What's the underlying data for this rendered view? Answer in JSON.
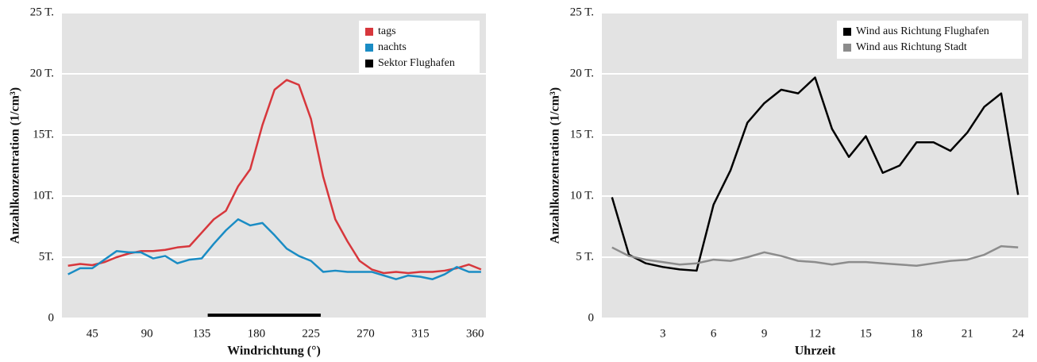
{
  "chart_data": [
    {
      "type": "line",
      "x_label": "Windrichtung (°)",
      "y_label": "Anzahlkonzentration (1/cm³)",
      "x": [
        25,
        35,
        45,
        55,
        65,
        75,
        85,
        95,
        105,
        115,
        125,
        135,
        145,
        155,
        165,
        175,
        185,
        195,
        205,
        215,
        225,
        235,
        245,
        255,
        265,
        275,
        285,
        295,
        305,
        315,
        325,
        335,
        345,
        355,
        365
      ],
      "series": [
        {
          "name": "tags",
          "color": "#d7373c",
          "values": [
            4.3,
            4.45,
            4.35,
            4.6,
            5.0,
            5.3,
            5.5,
            5.5,
            5.6,
            5.8,
            5.9,
            7.0,
            8.1,
            8.8,
            10.8,
            12.2,
            15.8,
            18.7,
            19.5,
            19.1,
            16.3,
            11.6,
            8.1,
            6.3,
            4.7,
            4.0,
            3.7,
            3.8,
            3.7,
            3.8,
            3.8,
            3.9,
            4.1,
            4.4,
            4.0
          ]
        },
        {
          "name": "nachts",
          "color": "#1a8cc4",
          "values": [
            3.6,
            4.1,
            4.1,
            4.8,
            5.5,
            5.4,
            5.4,
            4.9,
            5.1,
            4.5,
            4.8,
            4.9,
            6.1,
            7.2,
            8.1,
            7.6,
            7.8,
            6.8,
            5.7,
            5.1,
            4.7,
            3.8,
            3.9,
            3.8,
            3.8,
            3.8,
            3.5,
            3.2,
            3.5,
            3.4,
            3.2,
            3.6,
            4.2,
            3.8,
            3.8
          ]
        }
      ],
      "sector": {
        "name": "Sektor Flughafen",
        "color": "#000000",
        "range": [
          140,
          233
        ]
      },
      "xlim": [
        20,
        369
      ],
      "xticks": [
        45,
        90,
        135,
        180,
        225,
        270,
        315,
        360
      ],
      "ylim": [
        0,
        25
      ],
      "yticks": [
        {
          "value": 0,
          "label": "0"
        },
        {
          "value": 5,
          "label": "5T."
        },
        {
          "value": 10,
          "label": "10T."
        },
        {
          "value": 15,
          "label": "15T."
        },
        {
          "value": 20,
          "label": "20 T."
        },
        {
          "value": 25,
          "label": "25 T."
        }
      ],
      "grid": true,
      "legend": "top-right"
    },
    {
      "type": "line",
      "x_label": "Uhrzeit",
      "y_label": "Anzahlkonzentration (1/cm³)",
      "x": [
        0,
        1,
        2,
        3,
        4,
        5,
        6,
        7,
        8,
        9,
        10,
        11,
        12,
        13,
        14,
        15,
        16,
        17,
        18,
        19,
        20,
        21,
        22,
        23,
        24
      ],
      "series": [
        {
          "name": "Wind aus Richtung Flughafen",
          "color": "#000000",
          "values": [
            9.9,
            5.2,
            4.5,
            4.2,
            4.0,
            3.9,
            9.3,
            12.1,
            16.0,
            17.6,
            18.7,
            18.4,
            19.7,
            15.5,
            13.2,
            14.9,
            11.9,
            12.5,
            14.4,
            14.4,
            13.7,
            15.2,
            17.3,
            18.4,
            10.1
          ]
        },
        {
          "name": "Wind aus Richtung Stadt",
          "color": "#8c8c8c",
          "values": [
            5.8,
            5.1,
            4.8,
            4.6,
            4.4,
            4.5,
            4.8,
            4.7,
            5.0,
            5.4,
            5.1,
            4.7,
            4.6,
            4.4,
            4.6,
            4.6,
            4.5,
            4.4,
            4.3,
            4.5,
            4.7,
            4.8,
            5.2,
            5.9,
            5.8
          ]
        }
      ],
      "xlim": [
        -0.6,
        24.6
      ],
      "xticks": [
        3,
        6,
        9,
        12,
        15,
        18,
        21,
        24
      ],
      "ylim": [
        0,
        25
      ],
      "yticks": [
        {
          "value": 0,
          "label": "0"
        },
        {
          "value": 5,
          "label": "5 T."
        },
        {
          "value": 10,
          "label": "10 T."
        },
        {
          "value": 15,
          "label": "15 T."
        },
        {
          "value": 20,
          "label": "20 T."
        },
        {
          "value": 25,
          "label": "25 T."
        }
      ],
      "grid": true,
      "legend": "top-right"
    }
  ]
}
